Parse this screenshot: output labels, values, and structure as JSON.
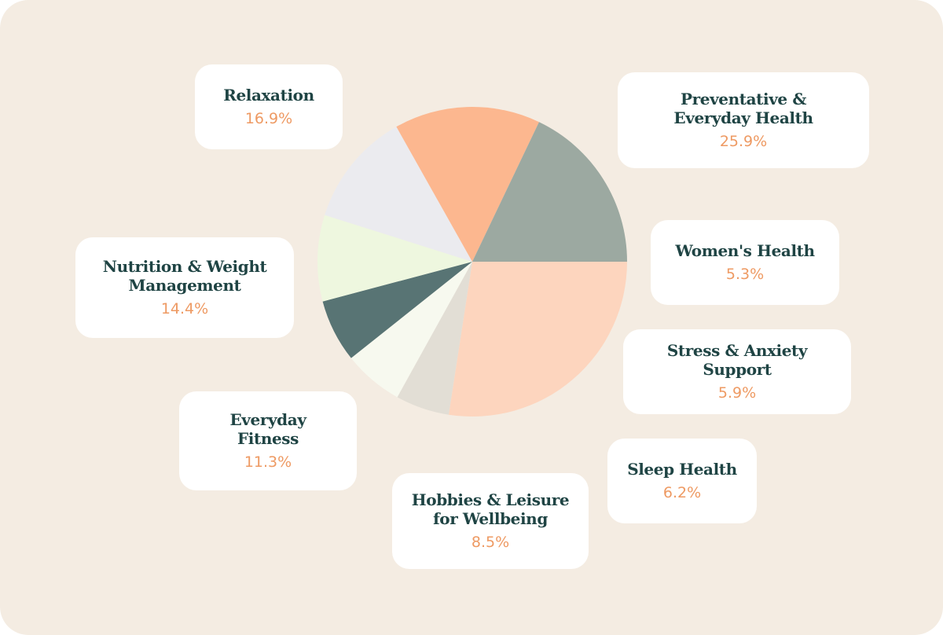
{
  "chart_data": {
    "type": "pie",
    "slices": [
      {
        "label": "Preventative & Everyday Health",
        "value": 25.9,
        "display": "25.9%",
        "color": "#fdd5be"
      },
      {
        "label": "Women's Health",
        "value": 5.3,
        "display": "5.3%",
        "color": "#e2ded5"
      },
      {
        "label": "Stress & Anxiety Support",
        "value": 5.9,
        "display": "5.9%",
        "color": "#f7f9ef"
      },
      {
        "label": "Sleep Health",
        "value": 6.2,
        "display": "6.2%",
        "color": "#587474"
      },
      {
        "label": "Hobbies & Leisure for Wellbeing",
        "value": 8.5,
        "display": "8.5%",
        "color": "#eef7df"
      },
      {
        "label": "Everyday Fitness",
        "value": 11.3,
        "display": "11.3%",
        "color": "#ebebef"
      },
      {
        "label": "Nutrition & Weight Management",
        "value": 14.4,
        "display": "14.4%",
        "color": "#fcb78f"
      },
      {
        "label": "Relaxation",
        "value": 16.9,
        "display": "16.9%",
        "color": "#9ca9a1"
      }
    ]
  },
  "cards": [
    {
      "title_lines": [
        "Relaxation"
      ],
      "value": "16.9%"
    },
    {
      "title_lines": [
        "Preventative &",
        "Everyday Health"
      ],
      "value": "25.9%"
    },
    {
      "title_lines": [
        "Women's Health"
      ],
      "value": "5.3%"
    },
    {
      "title_lines": [
        "Nutrition & Weight",
        "Management"
      ],
      "value": "14.4%"
    },
    {
      "title_lines": [
        "Stress & Anxiety Support"
      ],
      "value": "5.9%"
    },
    {
      "title_lines": [
        "Everyday",
        "Fitness"
      ],
      "value": "11.3%"
    },
    {
      "title_lines": [
        "Sleep Health"
      ],
      "value": "6.2%"
    },
    {
      "title_lines": [
        "Hobbies & Leisure",
        "for Wellbeing"
      ],
      "value": "8.5%"
    }
  ],
  "colors": {
    "background": "#f4ece2",
    "card": "#ffffff",
    "title_text": "#1f4444",
    "value_text": "#ee9a63"
  }
}
